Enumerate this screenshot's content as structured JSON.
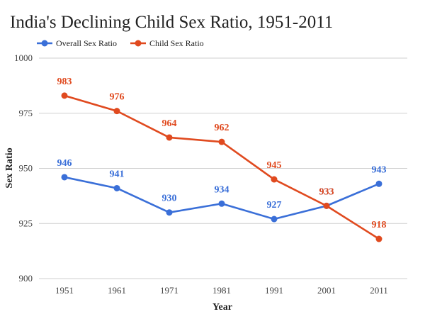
{
  "chart_data": {
    "type": "line",
    "title": "India's Declining Child Sex Ratio, 1951-2011",
    "xlabel": "Year",
    "ylabel": "Sex Ratio",
    "categories": [
      "1951",
      "1961",
      "1971",
      "1981",
      "1991",
      "2001",
      "2011"
    ],
    "ylim": [
      900,
      1000
    ],
    "yticks": [
      900,
      925,
      950,
      975,
      1000
    ],
    "grid": true,
    "legend_position": "top-left",
    "series": [
      {
        "name": "Overall Sex Ratio",
        "color": "#3a6fd8",
        "values": [
          946,
          941,
          930,
          934,
          927,
          933,
          943
        ]
      },
      {
        "name": "Child Sex Ratio",
        "color": "#e04a1f",
        "values": [
          983,
          976,
          964,
          962,
          945,
          933,
          918
        ]
      }
    ]
  }
}
